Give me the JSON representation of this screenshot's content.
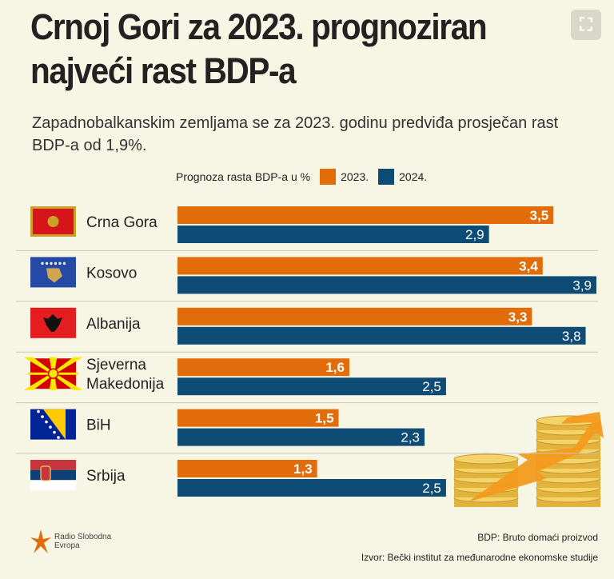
{
  "title_line1": "Crnoj Gori za 2023. prognoziran",
  "title_line2": "najveći rast BDP-a",
  "subtitle": "Zapadnobalkanskim zemljama se za 2023. godinu predviđa prosječan rast BDP-a od 1,9%.",
  "legend": {
    "label": "Prognoza rasta BDP-a u %",
    "items": [
      {
        "name": "2023.",
        "color": "#e36c0a"
      },
      {
        "name": "2024.",
        "color": "#0f4c75"
      }
    ]
  },
  "chart_data": {
    "type": "bar",
    "orientation": "horizontal",
    "title": "Crnoj Gori za 2023. prognoziran najveći rast BDP-a",
    "ylabel": "Prognoza rasta BDP-a u %",
    "categories": [
      "Crna Gora",
      "Kosovo",
      "Albanija",
      "Sjeverna Makedonija",
      "BiH",
      "Srbija"
    ],
    "series": [
      {
        "name": "2023.",
        "color": "#e36c0a",
        "values": [
          3.5,
          3.4,
          3.3,
          1.6,
          1.5,
          1.3
        ],
        "labels": [
          "3,5",
          "3,4",
          "3,3",
          "1,6",
          "1,5",
          "1,3"
        ]
      },
      {
        "name": "2024.",
        "color": "#0f4c75",
        "values": [
          2.9,
          3.9,
          3.8,
          2.5,
          2.3,
          2.5
        ],
        "labels": [
          "2,9",
          "3,9",
          "3,8",
          "2,5",
          "2,3",
          "2,5"
        ]
      }
    ],
    "xlim": [
      0,
      3.9
    ],
    "grid": false,
    "legend_position": "top"
  },
  "flags": [
    "montenegro-flag-icon",
    "kosovo-flag-icon",
    "albania-flag-icon",
    "north-macedonia-flag-icon",
    "bosnia-flag-icon",
    "serbia-flag-icon"
  ],
  "footer": {
    "note1": "BDP: Bruto domaći proizvod",
    "note2": "Izvor: Bečki institut za međunarodne ekonomske studije",
    "logo_line1": "Radio Slobodna",
    "logo_line2": "Evropa"
  }
}
